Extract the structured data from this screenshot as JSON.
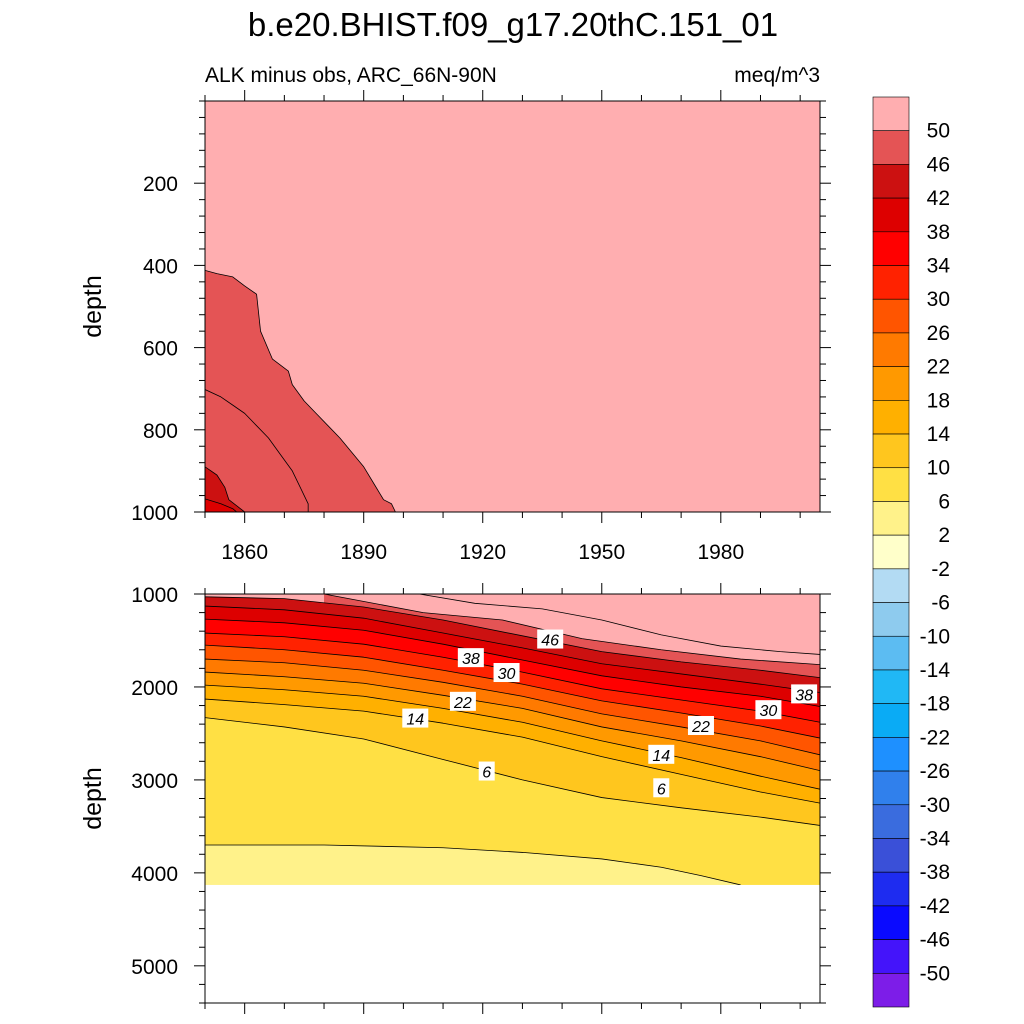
{
  "chart_data": {
    "type": "contour",
    "title": "b.e20.BHIST.f09_g17.20thC.151_01",
    "left_subtitle": "ALK minus obs, ARC_66N-90N",
    "right_subtitle": "meq/m^3",
    "x_range": [
      1850,
      2005
    ],
    "x_ticks": [
      1860,
      1890,
      1920,
      1950,
      1980
    ],
    "panels": [
      {
        "name": "upper-ocean",
        "ylabel": "depth",
        "ylim": [
          0,
          1000
        ],
        "y_ticks": [
          200,
          400,
          600,
          800,
          1000
        ],
        "contour_labels": [],
        "contour_lines": [
          {
            "level": 46,
            "points": [
              [
                1850,
                412
              ],
              [
                1853,
                420
              ],
              [
                1857,
                428
              ],
              [
                1860,
                450
              ],
              [
                1863,
                470
              ],
              [
                1864,
                560
              ],
              [
                1867,
                628
              ],
              [
                1871,
                657
              ],
              [
                1872,
                690
              ],
              [
                1875,
                730
              ],
              [
                1878,
                760
              ],
              [
                1881,
                790
              ],
              [
                1884,
                820
              ],
              [
                1887,
                855
              ],
              [
                1890,
                890
              ],
              [
                1893,
                938
              ],
              [
                1895,
                970
              ],
              [
                1897,
                980
              ],
              [
                1898,
                1000
              ]
            ]
          },
          {
            "level": 50,
            "points": [
              [
                1850,
                702
              ],
              [
                1854,
                720
              ],
              [
                1857,
                740
              ],
              [
                1860,
                760
              ],
              [
                1863,
                790
              ],
              [
                1866,
                820
              ],
              [
                1869,
                860
              ],
              [
                1872,
                900
              ],
              [
                1874,
                940
              ],
              [
                1876,
                980
              ],
              [
                1876,
                1000
              ]
            ]
          },
          {
            "level": 42,
            "points": [
              [
                1850,
                890
              ],
              [
                1853,
                910
              ],
              [
                1855,
                940
              ],
              [
                1856,
                970
              ],
              [
                1858,
                985
              ],
              [
                1860,
                1000
              ]
            ]
          },
          {
            "level": 38,
            "points": [
              [
                1850,
                968
              ],
              [
                1854,
                980
              ],
              [
                1857,
                992
              ],
              [
                1858,
                1000
              ]
            ]
          }
        ]
      },
      {
        "name": "deep-ocean",
        "ylabel": "depth",
        "ylim": [
          1000,
          5400
        ],
        "y_ticks": [
          1000,
          2000,
          3000,
          4000,
          5000
        ],
        "ocean_bottom_depth": 4130,
        "contour_labels": [
          {
            "text": "46",
            "x": 1937,
            "y": 1490
          },
          {
            "text": "38",
            "x": 1917,
            "y": 1690
          },
          {
            "text": "30",
            "x": 1926,
            "y": 1850
          },
          {
            "text": "22",
            "x": 1915,
            "y": 2160
          },
          {
            "text": "14",
            "x": 1903,
            "y": 2340
          },
          {
            "text": "6",
            "x": 1921,
            "y": 2910
          },
          {
            "text": "38",
            "x": 2001,
            "y": 2080
          },
          {
            "text": "30",
            "x": 1992,
            "y": 2250
          },
          {
            "text": "22",
            "x": 1975,
            "y": 2420
          },
          {
            "text": "14",
            "x": 1965,
            "y": 2730
          },
          {
            "text": "6",
            "x": 1965,
            "y": 3090
          }
        ],
        "contour_lines": [
          {
            "level": 50,
            "points": [
              [
                1904,
                1000
              ],
              [
                1918,
                1100
              ],
              [
                1935,
                1160
              ],
              [
                1950,
                1280
              ],
              [
                1965,
                1440
              ],
              [
                1980,
                1560
              ],
              [
                1995,
                1620
              ],
              [
                2005,
                1650
              ]
            ]
          },
          {
            "level": 46,
            "points": [
              [
                1880,
                1000
              ],
              [
                1905,
                1200
              ],
              [
                1925,
                1280
              ],
              [
                1945,
                1480
              ],
              [
                1965,
                1600
              ],
              [
                1985,
                1700
              ],
              [
                2005,
                1760
              ]
            ]
          },
          {
            "level": 42,
            "points": [
              [
                1850,
                1030
              ],
              [
                1870,
                1050
              ],
              [
                1890,
                1140
              ],
              [
                1910,
                1280
              ],
              [
                1930,
                1450
              ],
              [
                1950,
                1620
              ],
              [
                1970,
                1730
              ],
              [
                1990,
                1820
              ],
              [
                2005,
                1900
              ]
            ]
          },
          {
            "level": 38,
            "points": [
              [
                1850,
                1130
              ],
              [
                1870,
                1170
              ],
              [
                1890,
                1260
              ],
              [
                1910,
                1420
              ],
              [
                1930,
                1580
              ],
              [
                1950,
                1750
              ],
              [
                1970,
                1860
              ],
              [
                1990,
                1970
              ],
              [
                2005,
                2060
              ]
            ]
          },
          {
            "level": 34,
            "points": [
              [
                1850,
                1270
              ],
              [
                1870,
                1310
              ],
              [
                1890,
                1390
              ],
              [
                1910,
                1540
              ],
              [
                1930,
                1710
              ],
              [
                1950,
                1880
              ],
              [
                1970,
                2000
              ],
              [
                1990,
                2100
              ],
              [
                2005,
                2210
              ]
            ]
          },
          {
            "level": 30,
            "points": [
              [
                1850,
                1420
              ],
              [
                1870,
                1460
              ],
              [
                1890,
                1540
              ],
              [
                1910,
                1680
              ],
              [
                1930,
                1840
              ],
              [
                1950,
                2020
              ],
              [
                1970,
                2140
              ],
              [
                1990,
                2260
              ],
              [
                2005,
                2380
              ]
            ]
          },
          {
            "level": 26,
            "points": [
              [
                1850,
                1550
              ],
              [
                1870,
                1600
              ],
              [
                1890,
                1680
              ],
              [
                1910,
                1820
              ],
              [
                1930,
                1970
              ],
              [
                1950,
                2150
              ],
              [
                1970,
                2280
              ],
              [
                1990,
                2420
              ],
              [
                2005,
                2550
              ]
            ]
          },
          {
            "level": 22,
            "points": [
              [
                1850,
                1700
              ],
              [
                1870,
                1740
              ],
              [
                1890,
                1820
              ],
              [
                1910,
                1950
              ],
              [
                1930,
                2100
              ],
              [
                1950,
                2290
              ],
              [
                1970,
                2430
              ],
              [
                1990,
                2580
              ],
              [
                2005,
                2730
              ]
            ]
          },
          {
            "level": 18,
            "points": [
              [
                1850,
                1840
              ],
              [
                1870,
                1890
              ],
              [
                1890,
                1960
              ],
              [
                1910,
                2090
              ],
              [
                1930,
                2230
              ],
              [
                1950,
                2430
              ],
              [
                1970,
                2580
              ],
              [
                1990,
                2750
              ],
              [
                2005,
                2900
              ]
            ]
          },
          {
            "level": 14,
            "points": [
              [
                1850,
                1980
              ],
              [
                1870,
                2030
              ],
              [
                1890,
                2100
              ],
              [
                1910,
                2230
              ],
              [
                1930,
                2380
              ],
              [
                1950,
                2580
              ],
              [
                1970,
                2760
              ],
              [
                1990,
                2960
              ],
              [
                2005,
                3100
              ]
            ]
          },
          {
            "level": 10,
            "points": [
              [
                1850,
                2130
              ],
              [
                1870,
                2190
              ],
              [
                1890,
                2260
              ],
              [
                1910,
                2390
              ],
              [
                1930,
                2540
              ],
              [
                1950,
                2750
              ],
              [
                1970,
                2940
              ],
              [
                1990,
                3130
              ],
              [
                2005,
                3250
              ]
            ]
          },
          {
            "level": 6,
            "points": [
              [
                1850,
                2330
              ],
              [
                1870,
                2430
              ],
              [
                1890,
                2560
              ],
              [
                1910,
                2780
              ],
              [
                1930,
                3000
              ],
              [
                1950,
                3190
              ],
              [
                1970,
                3300
              ],
              [
                1990,
                3400
              ],
              [
                2005,
                3490
              ]
            ]
          },
          {
            "level": 2,
            "points": [
              [
                1850,
                3700
              ],
              [
                1880,
                3700
              ],
              [
                1910,
                3730
              ],
              [
                1930,
                3780
              ],
              [
                1950,
                3850
              ],
              [
                1965,
                3940
              ],
              [
                1975,
                4030
              ],
              [
                1985,
                4130
              ]
            ]
          }
        ]
      }
    ],
    "colorbar": {
      "labels": [
        "50",
        "46",
        "42",
        "38",
        "34",
        "30",
        "26",
        "22",
        "18",
        "14",
        "10",
        "6",
        "2",
        "-2",
        "-6",
        "-10",
        "-14",
        "-18",
        "-22",
        "-26",
        "-30",
        "-34",
        "-38",
        "-42",
        "-46",
        "-50"
      ],
      "colors": [
        "#ffaeb0",
        "#e45455",
        "#cc1111",
        "#dd0000",
        "#ff0000",
        "#ff2200",
        "#ff5500",
        "#ff7a00",
        "#ff9900",
        "#ffb000",
        "#ffc61e",
        "#ffe044",
        "#fff28a",
        "#ffffca",
        "#b3dbf3",
        "#8ecbee",
        "#5cbcf2",
        "#20b8f5",
        "#0aabf5",
        "#1e90ff",
        "#3080ec",
        "#3a6cde",
        "#3a50d8",
        "#1e2cf0",
        "#0a0aff",
        "#4414fa",
        "#7d1de8"
      ]
    }
  }
}
